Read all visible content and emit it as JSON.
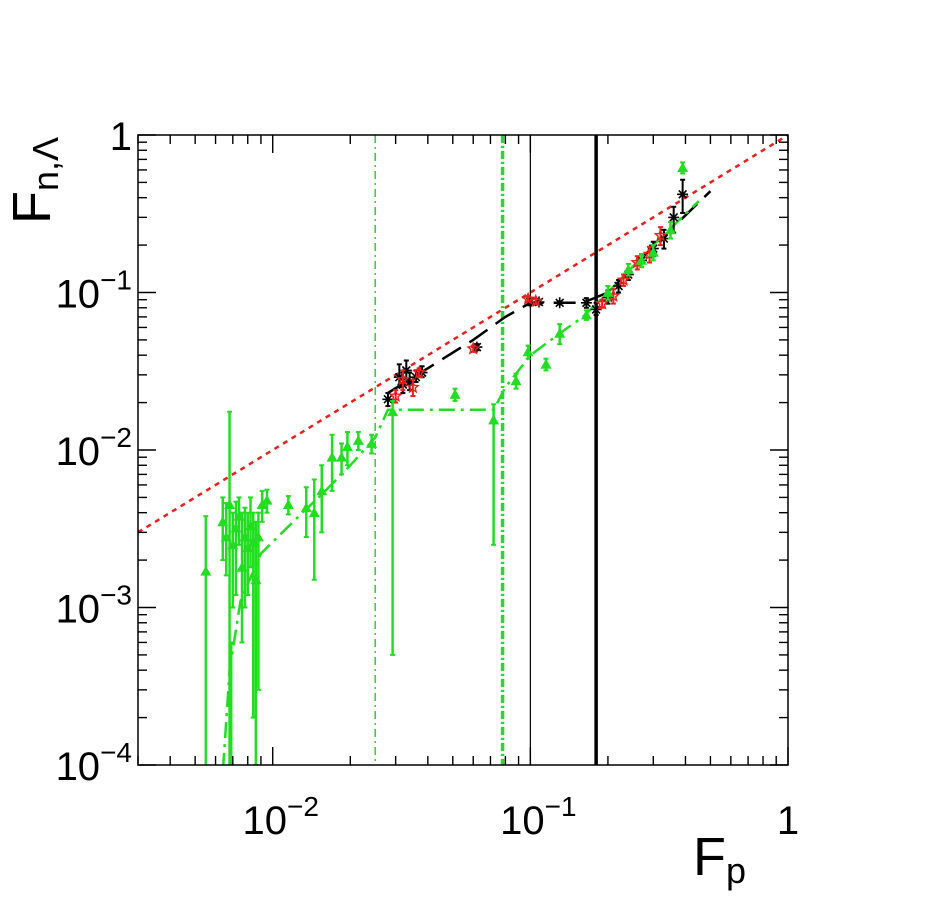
{
  "chart_data": {
    "type": "scatter",
    "title": "",
    "xlabel": {
      "main": "F",
      "sub": "p"
    },
    "ylabel": {
      "main": "F",
      "sub": "n,Λ"
    },
    "xscale": "log",
    "yscale": "log",
    "xlim": [
      0.003,
      1
    ],
    "ylim": [
      0.0001,
      1
    ],
    "grid": false,
    "legend": "none",
    "x_ticks": [
      {
        "value": 0.01,
        "base": "10",
        "exp": "−2"
      },
      {
        "value": 0.1,
        "base": "10",
        "exp": "−1"
      },
      {
        "value": 1,
        "base": "1",
        "exp": ""
      }
    ],
    "y_ticks": [
      {
        "value": 0.0001,
        "base": "10",
        "exp": "−4"
      },
      {
        "value": 0.001,
        "base": "10",
        "exp": "−3"
      },
      {
        "value": 0.01,
        "base": "10",
        "exp": "−2"
      },
      {
        "value": 0.1,
        "base": "10",
        "exp": "−1"
      },
      {
        "value": 1,
        "base": "1",
        "exp": ""
      }
    ],
    "reference_lines": [
      {
        "type": "diagonal",
        "kind": "y=x",
        "color": "#e8201e",
        "style": "dotted"
      },
      {
        "type": "vertical",
        "x": 0.025,
        "color": "#22dd22",
        "style": "dashdot-thin"
      },
      {
        "type": "vertical",
        "x": 0.078,
        "color": "#22dd22",
        "style": "dashdot-thick"
      },
      {
        "type": "vertical",
        "x": 0.1,
        "color": "#000000",
        "style": "solid-thin"
      },
      {
        "type": "vertical",
        "x": 0.18,
        "color": "#000000",
        "style": "solid-thick"
      }
    ],
    "fit_curves": [
      {
        "color": "#000000",
        "style": "longdash",
        "points": [
          [
            0.028,
            0.023
          ],
          [
            0.04,
            0.033
          ],
          [
            0.06,
            0.05
          ],
          [
            0.08,
            0.07
          ],
          [
            0.1,
            0.086
          ],
          [
            0.13,
            0.086
          ],
          [
            0.16,
            0.086
          ],
          [
            0.2,
            0.1
          ],
          [
            0.27,
            0.165
          ],
          [
            0.35,
            0.25
          ],
          [
            0.5,
            0.44
          ]
        ]
      },
      {
        "color": "#22dd22",
        "style": "dashdot",
        "points": [
          [
            0.0063,
            6e-05
          ],
          [
            0.0068,
            0.0004
          ],
          [
            0.0075,
            0.0011
          ],
          [
            0.009,
            0.0022
          ],
          [
            0.012,
            0.0035
          ],
          [
            0.016,
            0.0055
          ],
          [
            0.02,
            0.008
          ],
          [
            0.025,
            0.012
          ],
          [
            0.028,
            0.018
          ],
          [
            0.04,
            0.018
          ],
          [
            0.06,
            0.018
          ],
          [
            0.072,
            0.018
          ],
          [
            0.08,
            0.025
          ],
          [
            0.1,
            0.04
          ],
          [
            0.13,
            0.055
          ],
          [
            0.16,
            0.07
          ],
          [
            0.2,
            0.1
          ],
          [
            0.3,
            0.2
          ],
          [
            0.45,
            0.38
          ]
        ]
      }
    ],
    "series": [
      {
        "marker": "star",
        "color": "#000000",
        "points": [
          {
            "x": 0.028,
            "y": 0.021,
            "elo": 0.002,
            "ehi": 0.002
          },
          {
            "x": 0.031,
            "y": 0.029,
            "elo": 0.004,
            "ehi": 0.006
          },
          {
            "x": 0.032,
            "y": 0.026,
            "elo": 0.003,
            "ehi": 0.005
          },
          {
            "x": 0.033,
            "y": 0.032,
            "elo": 0.004,
            "ehi": 0.005
          },
          {
            "x": 0.034,
            "y": 0.027,
            "elo": 0.003,
            "ehi": 0.004
          },
          {
            "x": 0.036,
            "y": 0.029,
            "elo": 0.002,
            "ehi": 0.003
          },
          {
            "x": 0.038,
            "y": 0.031,
            "elo": 0.002,
            "ehi": 0.003
          },
          {
            "x": 0.062,
            "y": 0.045,
            "elo": 0.002,
            "ehi": 0.002
          },
          {
            "x": 0.1,
            "y": 0.087,
            "elo": 0.004,
            "ehi": 0.004
          },
          {
            "x": 0.108,
            "y": 0.087,
            "elo": 0.003,
            "ehi": 0.003
          },
          {
            "x": 0.13,
            "y": 0.086,
            "elo": 0.002,
            "ehi": 0.002
          },
          {
            "x": 0.165,
            "y": 0.086,
            "elo": 0.006,
            "ehi": 0.006
          },
          {
            "x": 0.18,
            "y": 0.078,
            "elo": 0.006,
            "ehi": 0.008
          },
          {
            "x": 0.2,
            "y": 0.093,
            "elo": 0.008,
            "ehi": 0.01
          },
          {
            "x": 0.22,
            "y": 0.11,
            "elo": 0.01,
            "ehi": 0.01
          },
          {
            "x": 0.24,
            "y": 0.13,
            "elo": 0.01,
            "ehi": 0.01
          },
          {
            "x": 0.27,
            "y": 0.16,
            "elo": 0.015,
            "ehi": 0.015
          },
          {
            "x": 0.3,
            "y": 0.19,
            "elo": 0.02,
            "ehi": 0.02
          },
          {
            "x": 0.33,
            "y": 0.22,
            "elo": 0.03,
            "ehi": 0.03
          },
          {
            "x": 0.36,
            "y": 0.3,
            "elo": 0.06,
            "ehi": 0.05
          },
          {
            "x": 0.39,
            "y": 0.42,
            "elo": 0.1,
            "ehi": 0.1
          }
        ]
      },
      {
        "marker": "open-star",
        "color": "#e8201e",
        "points": [
          {
            "x": 0.03,
            "y": 0.022,
            "elo": 0.002,
            "ehi": 0.002
          },
          {
            "x": 0.032,
            "y": 0.028,
            "elo": 0.004,
            "ehi": 0.004
          },
          {
            "x": 0.035,
            "y": 0.025,
            "elo": 0.003,
            "ehi": 0.003
          },
          {
            "x": 0.037,
            "y": 0.031,
            "elo": 0.002,
            "ehi": 0.002
          },
          {
            "x": 0.06,
            "y": 0.044,
            "elo": 0.002,
            "ehi": 0.002
          },
          {
            "x": 0.098,
            "y": 0.091,
            "elo": 0.003,
            "ehi": 0.003
          },
          {
            "x": 0.105,
            "y": 0.088,
            "elo": 0.003,
            "ehi": 0.003
          },
          {
            "x": 0.19,
            "y": 0.085,
            "elo": 0.005,
            "ehi": 0.005
          },
          {
            "x": 0.21,
            "y": 0.095,
            "elo": 0.01,
            "ehi": 0.01
          },
          {
            "x": 0.23,
            "y": 0.12,
            "elo": 0.01,
            "ehi": 0.01
          },
          {
            "x": 0.26,
            "y": 0.155,
            "elo": 0.015,
            "ehi": 0.015
          },
          {
            "x": 0.29,
            "y": 0.175,
            "elo": 0.02,
            "ehi": 0.02
          },
          {
            "x": 0.32,
            "y": 0.23,
            "elo": 0.03,
            "ehi": 0.03
          }
        ]
      },
      {
        "marker": "triangle",
        "color": "#22dd22",
        "points": [
          {
            "x": 0.0055,
            "y": 0.0017,
            "elo": 0.0016,
            "ehi": 0.0021
          },
          {
            "x": 0.0064,
            "y": 0.0035,
            "elo": 0.0015,
            "ehi": 0.0015
          },
          {
            "x": 0.0066,
            "y": 0.0028,
            "elo": 0.0012,
            "ehi": 0.0018
          },
          {
            "x": 0.0068,
            "y": 0.0045,
            "elo": 0.0044,
            "ehi": 0.013
          },
          {
            "x": 0.0069,
            "y": 0.0001,
            "elo": 9e-05,
            "ehi": 0.0005
          },
          {
            "x": 0.007,
            "y": 0.0025,
            "elo": 0.0015,
            "ehi": 0.0015
          },
          {
            "x": 0.0072,
            "y": 0.0032,
            "elo": 0.002,
            "ehi": 0.0015
          },
          {
            "x": 0.0074,
            "y": 0.0038,
            "elo": 0.0013,
            "ehi": 0.0012
          },
          {
            "x": 0.0076,
            "y": 0.0018,
            "elo": 0.0012,
            "ehi": 0.0022
          },
          {
            "x": 0.0078,
            "y": 0.0028,
            "elo": 0.0018,
            "ehi": 0.0015
          },
          {
            "x": 0.008,
            "y": 0.0024,
            "elo": 0.0012,
            "ehi": 0.0016
          },
          {
            "x": 0.0082,
            "y": 0.0033,
            "elo": 0.0015,
            "ehi": 0.0017
          },
          {
            "x": 0.0084,
            "y": 0.0026,
            "elo": 0.0024,
            "ehi": 0.0014
          },
          {
            "x": 0.0086,
            "y": 0.0015,
            "elo": 0.0014,
            "ehi": 0.002
          },
          {
            "x": 0.0088,
            "y": 0.0028,
            "elo": 0.0025,
            "ehi": 0.0012
          },
          {
            "x": 0.0091,
            "y": 0.0045,
            "elo": 0.001,
            "ehi": 0.001
          },
          {
            "x": 0.0095,
            "y": 0.0048,
            "elo": 0.0008,
            "ehi": 0.0008
          },
          {
            "x": 0.0115,
            "y": 0.0045,
            "elo": 0.0006,
            "ehi": 0.0006
          },
          {
            "x": 0.0135,
            "y": 0.0043,
            "elo": 0.0015,
            "ehi": 0.0015
          },
          {
            "x": 0.0145,
            "y": 0.004,
            "elo": 0.0025,
            "ehi": 0.0025
          },
          {
            "x": 0.0155,
            "y": 0.0055,
            "elo": 0.0025,
            "ehi": 0.0025
          },
          {
            "x": 0.017,
            "y": 0.009,
            "elo": 0.0035,
            "ehi": 0.0035
          },
          {
            "x": 0.0185,
            "y": 0.009,
            "elo": 0.002,
            "ehi": 0.002
          },
          {
            "x": 0.0195,
            "y": 0.0105,
            "elo": 0.0025,
            "ehi": 0.0025
          },
          {
            "x": 0.0215,
            "y": 0.0115,
            "elo": 0.0015,
            "ehi": 0.0015
          },
          {
            "x": 0.0242,
            "y": 0.011,
            "elo": 0.0015,
            "ehi": 0.0015
          },
          {
            "x": 0.0292,
            "y": 0.0175,
            "elo": 0.017,
            "ehi": 0.003
          },
          {
            "x": 0.051,
            "y": 0.0225,
            "elo": 0.002,
            "ehi": 0.002
          },
          {
            "x": 0.072,
            "y": 0.0155,
            "elo": 0.013,
            "ehi": 0.004
          },
          {
            "x": 0.088,
            "y": 0.0275,
            "elo": 0.003,
            "ehi": 0.003
          },
          {
            "x": 0.098,
            "y": 0.042,
            "elo": 0.004,
            "ehi": 0.004
          },
          {
            "x": 0.115,
            "y": 0.035,
            "elo": 0.003,
            "ehi": 0.003
          },
          {
            "x": 0.13,
            "y": 0.055,
            "elo": 0.008,
            "ehi": 0.008
          },
          {
            "x": 0.165,
            "y": 0.072,
            "elo": 0.005,
            "ehi": 0.005
          },
          {
            "x": 0.2,
            "y": 0.1,
            "elo": 0.01,
            "ehi": 0.01
          },
          {
            "x": 0.24,
            "y": 0.14,
            "elo": 0.012,
            "ehi": 0.012
          },
          {
            "x": 0.27,
            "y": 0.16,
            "elo": 0.015,
            "ehi": 0.015
          },
          {
            "x": 0.3,
            "y": 0.18,
            "elo": 0.02,
            "ehi": 0.02
          },
          {
            "x": 0.35,
            "y": 0.25,
            "elo": 0.03,
            "ehi": 0.03
          },
          {
            "x": 0.39,
            "y": 0.62,
            "elo": 0.05,
            "ehi": 0.05
          }
        ]
      }
    ]
  }
}
